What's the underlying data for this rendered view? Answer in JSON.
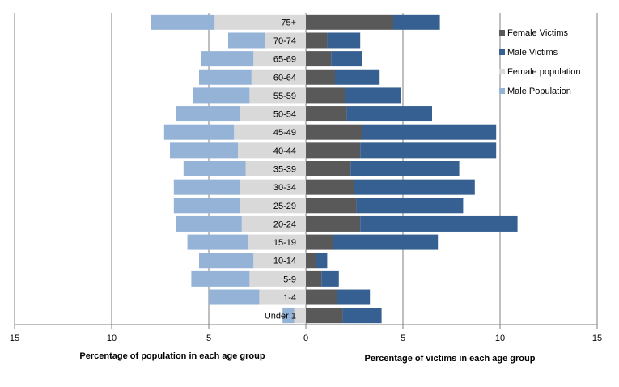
{
  "chart_data": {
    "type": "bar",
    "orientation": "horizontal",
    "layout": "population-pyramid",
    "categories": [
      "Under 1",
      "1-4",
      "5-9",
      "10-14",
      "15-19",
      "20-24",
      "25-29",
      "30-34",
      "35-39",
      "40-44",
      "45-49",
      "50-54",
      "55-59",
      "60-64",
      "65-69",
      "70-74",
      "75+"
    ],
    "left_panel": {
      "xlabel": "Percentage of population in each age group",
      "xlim": [
        15,
        0
      ],
      "ticks": [
        15,
        10,
        5,
        0
      ],
      "series": [
        {
          "name": "Female population",
          "color": "#d9d9d9",
          "values": [
            0.6,
            2.4,
            2.9,
            2.7,
            3.0,
            3.3,
            3.4,
            3.4,
            3.1,
            3.5,
            3.7,
            3.4,
            2.9,
            2.8,
            2.7,
            2.1,
            4.7
          ]
        },
        {
          "name": "Male Population",
          "color": "#95b3d7",
          "values": [
            0.6,
            2.6,
            3.0,
            2.8,
            3.1,
            3.4,
            3.4,
            3.4,
            3.2,
            3.5,
            3.6,
            3.3,
            2.9,
            2.7,
            2.7,
            1.9,
            3.3
          ]
        }
      ]
    },
    "right_panel": {
      "xlabel": "Percentage of victims in each age group",
      "xlim": [
        0,
        15
      ],
      "ticks": [
        0,
        5,
        10,
        15
      ],
      "series": [
        {
          "name": "Female Victims",
          "color": "#595959",
          "values": [
            1.9,
            1.6,
            0.8,
            0.5,
            1.4,
            2.8,
            2.6,
            2.5,
            2.3,
            2.8,
            2.9,
            2.1,
            2.0,
            1.5,
            1.3,
            1.1,
            4.5
          ]
        },
        {
          "name": "Male Victims",
          "color": "#376092",
          "values": [
            2.0,
            1.7,
            0.9,
            0.6,
            5.4,
            8.1,
            5.5,
            6.2,
            5.6,
            7.0,
            6.9,
            4.4,
            2.9,
            2.3,
            1.6,
            1.7,
            2.4
          ]
        }
      ]
    },
    "legend": {
      "placement": "top-right",
      "entries": [
        {
          "name": "Female Victims",
          "color": "#595959"
        },
        {
          "name": "Male Victims",
          "color": "#376092"
        },
        {
          "name": "Female population",
          "color": "#d9d9d9"
        },
        {
          "name": "Male Population",
          "color": "#95b3d7"
        }
      ]
    },
    "grid": true,
    "gridline_color": "#7f7f7f"
  }
}
